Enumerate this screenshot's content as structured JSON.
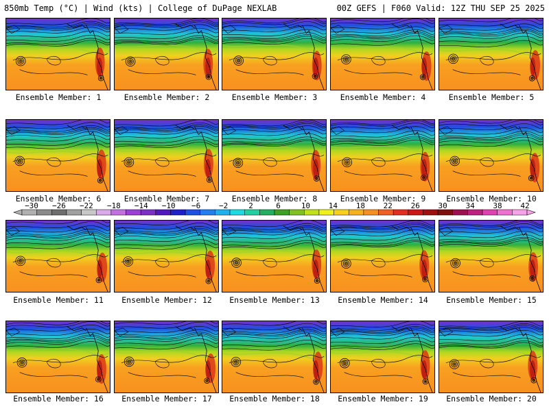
{
  "header": {
    "left_title": "850mb Temp (°C) | Wind (kts) | College of DuPage NEXLAB",
    "right_title": "00Z GEFS | F060 Valid: 12Z THU SEP 25 2025"
  },
  "members": [
    {
      "label": "Ensemble Member: 1"
    },
    {
      "label": "Ensemble Member: 2"
    },
    {
      "label": "Ensemble Member: 3"
    },
    {
      "label": "Ensemble Member: 4"
    },
    {
      "label": "Ensemble Member: 5"
    },
    {
      "label": "Ensemble Member: 6"
    },
    {
      "label": "Ensemble Member: 7"
    },
    {
      "label": "Ensemble Member: 8"
    },
    {
      "label": "Ensemble Member: 9"
    },
    {
      "label": "Ensemble Member: 10"
    },
    {
      "label": "Ensemble Member: 11"
    },
    {
      "label": "Ensemble Member: 12"
    },
    {
      "label": "Ensemble Member: 13"
    },
    {
      "label": "Ensemble Member: 14"
    },
    {
      "label": "Ensemble Member: 15"
    },
    {
      "label": "Ensemble Member: 16"
    },
    {
      "label": "Ensemble Member: 17"
    },
    {
      "label": "Ensemble Member: 18"
    },
    {
      "label": "Ensemble Member: 19"
    },
    {
      "label": "Ensemble Member: 20"
    }
  ],
  "colorbar": {
    "labels": [
      "−30",
      "−26",
      "−22",
      "−18",
      "−14",
      "−10",
      "−6",
      "−2",
      "2",
      "6",
      "10",
      "14",
      "18",
      "22",
      "26",
      "30",
      "34",
      "38",
      "42"
    ],
    "colors": [
      "#b0b0b0",
      "#8a8a8a",
      "#6e6e6e",
      "#a0a0a0",
      "#c8c8c8",
      "#d8a8e8",
      "#c070e0",
      "#9a40d8",
      "#7a30c8",
      "#5018c0",
      "#2020c8",
      "#2050e0",
      "#2080f0",
      "#20b0f0",
      "#20d8e0",
      "#20d0a0",
      "#20b060",
      "#40a020",
      "#80c020",
      "#c0e020",
      "#f0f020",
      "#f8d020",
      "#f8b020",
      "#f89020",
      "#f06020",
      "#e03020",
      "#c81818",
      "#a01010",
      "#801010",
      "#a01050",
      "#c02080",
      "#e040b0",
      "#f070d0",
      "#f8a0e8"
    ]
  }
}
